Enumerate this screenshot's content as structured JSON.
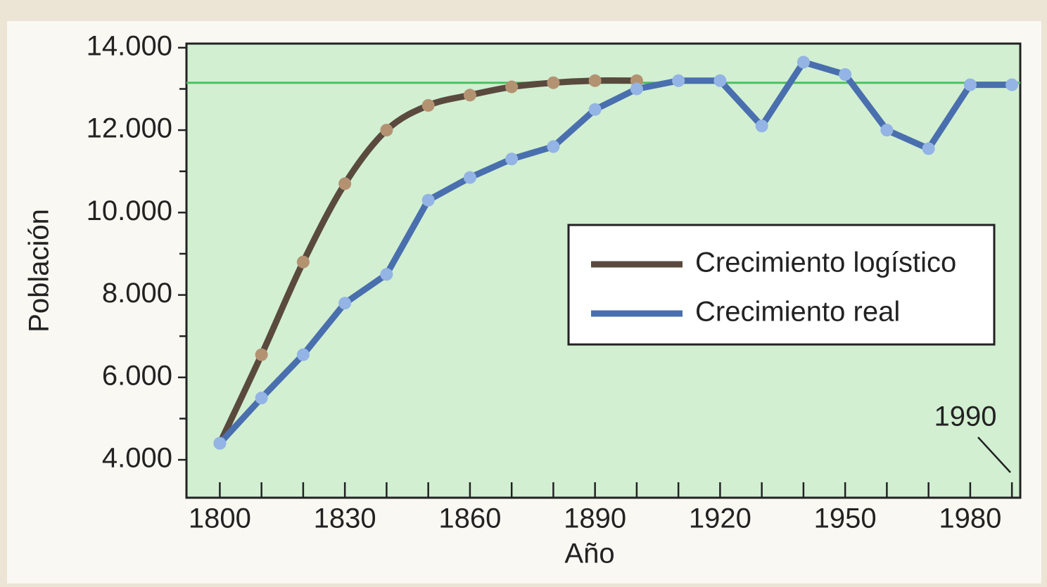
{
  "chart_data": {
    "type": "line",
    "x_label": "Año",
    "y_label": "Población",
    "annotation": "1990",
    "xlim": [
      1792,
      1992
    ],
    "ylim": [
      3080,
      14100
    ],
    "xticks": [
      1800,
      1830,
      1860,
      1890,
      1920,
      1950,
      1980
    ],
    "xminor_ticks": [
      1810,
      1820,
      1840,
      1850,
      1870,
      1880,
      1900,
      1910,
      1930,
      1940,
      1960,
      1970,
      1990
    ],
    "yticks": [
      {
        "value": 4000,
        "label": "4.000"
      },
      {
        "value": 6000,
        "label": "6.000"
      },
      {
        "value": 8000,
        "label": "8.000"
      },
      {
        "value": 10000,
        "label": "10.000"
      },
      {
        "value": 12000,
        "label": "12.000"
      },
      {
        "value": 14000,
        "label": "14.000"
      }
    ],
    "yminor_ticks": [
      5000,
      7000,
      9000,
      11000,
      13000
    ],
    "carrying_capacity": 13150,
    "carrying_capacity_color": "#4cc060",
    "legend": "right",
    "series": [
      {
        "name": "Crecimiento logístico",
        "color": "#5a4a3e",
        "marker_color": "#b39272",
        "smooth": true,
        "x": [
          1800,
          1810,
          1820,
          1830,
          1840,
          1850,
          1860,
          1870,
          1880,
          1890,
          1900
        ],
        "values": [
          4400,
          6550,
          8800,
          10700,
          12000,
          12600,
          12850,
          13050,
          13150,
          13200,
          13200
        ]
      },
      {
        "name": "Crecimiento real",
        "color": "#4a6fae",
        "marker_color": "#93b4e4",
        "smooth": false,
        "x": [
          1800,
          1810,
          1820,
          1830,
          1840,
          1850,
          1860,
          1870,
          1880,
          1890,
          1900,
          1910,
          1920,
          1930,
          1940,
          1950,
          1960,
          1970,
          1980,
          1990
        ],
        "values": [
          4400,
          5500,
          6550,
          7800,
          8500,
          10300,
          10850,
          11300,
          11600,
          12500,
          13000,
          13200,
          13200,
          12100,
          13650,
          13350,
          12000,
          11550,
          13100,
          13100
        ]
      }
    ]
  }
}
